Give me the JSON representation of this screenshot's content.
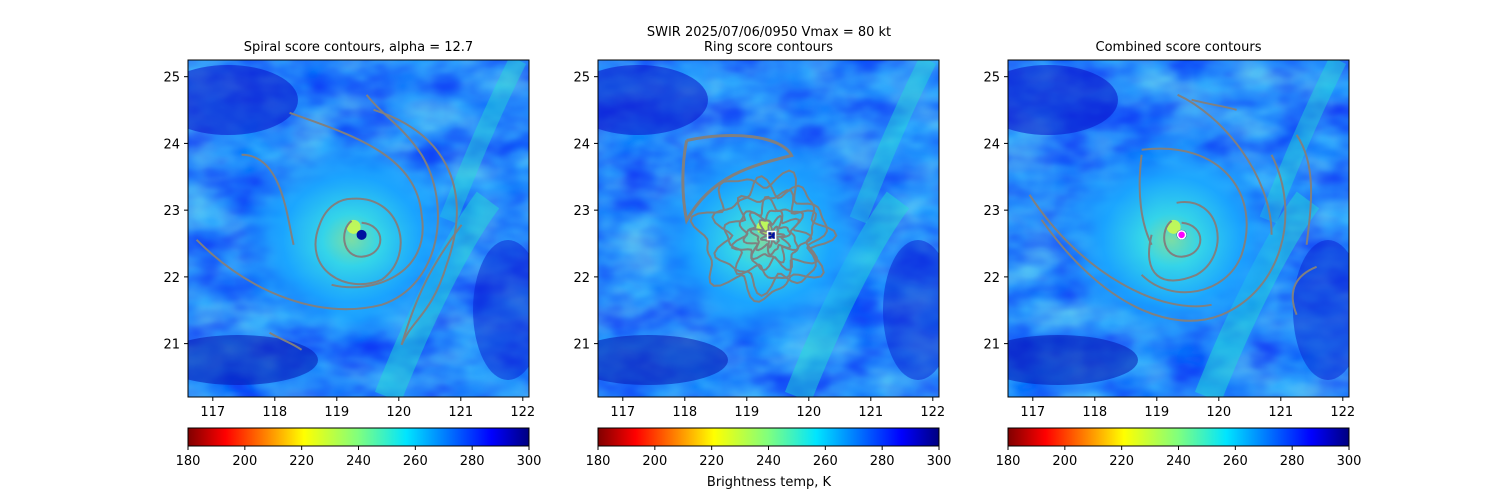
{
  "figure": {
    "suptitle": "SWIR  2025/07/06/0950    Vmax = 80 kt",
    "colorbar_label": "Brightness temp, K"
  },
  "chart_data": [
    {
      "type": "heatmap",
      "title": "Spiral score contours, alpha = 12.7",
      "xlim": [
        116.6,
        122.1
      ],
      "ylim": [
        20.2,
        25.25
      ],
      "xticks": [
        117,
        118,
        119,
        120,
        121,
        122
      ],
      "yticks": [
        21,
        22,
        23,
        24,
        25
      ],
      "center": [
        119.4,
        22.63
      ],
      "overlay": "spiral-contours",
      "colorbar": {
        "min": 180,
        "max": 300,
        "ticks": [
          180,
          200,
          220,
          240,
          260,
          280,
          300
        ],
        "colormap": "jet_r"
      }
    },
    {
      "type": "heatmap",
      "title": "Ring score contours",
      "xlim": [
        116.6,
        122.1
      ],
      "ylim": [
        20.2,
        25.25
      ],
      "xticks": [
        117,
        118,
        119,
        120,
        121,
        122
      ],
      "yticks": [
        21,
        22,
        23,
        24,
        25
      ],
      "center": [
        119.4,
        22.62
      ],
      "overlay": "ring-contours",
      "colorbar": {
        "min": 180,
        "max": 300,
        "ticks": [
          180,
          200,
          220,
          240,
          260,
          280,
          300
        ],
        "colormap": "jet_r"
      }
    },
    {
      "type": "heatmap",
      "title": "Combined score contours",
      "xlim": [
        116.6,
        122.1
      ],
      "ylim": [
        20.2,
        25.25
      ],
      "xticks": [
        117,
        118,
        119,
        120,
        121,
        122
      ],
      "yticks": [
        21,
        22,
        23,
        24,
        25
      ],
      "center": [
        119.4,
        22.63
      ],
      "overlay": "combined-contours",
      "colorbar": {
        "min": 180,
        "max": 300,
        "ticks": [
          180,
          200,
          220,
          240,
          260,
          280,
          300
        ],
        "colormap": "jet_r"
      }
    }
  ],
  "colors": {
    "contour": "#808080",
    "cold_cloud": "#1aa0ff",
    "clear_sky": "#0a1cf0",
    "moist_band": "#22e0d0",
    "center_marker": "#ff00ff"
  }
}
